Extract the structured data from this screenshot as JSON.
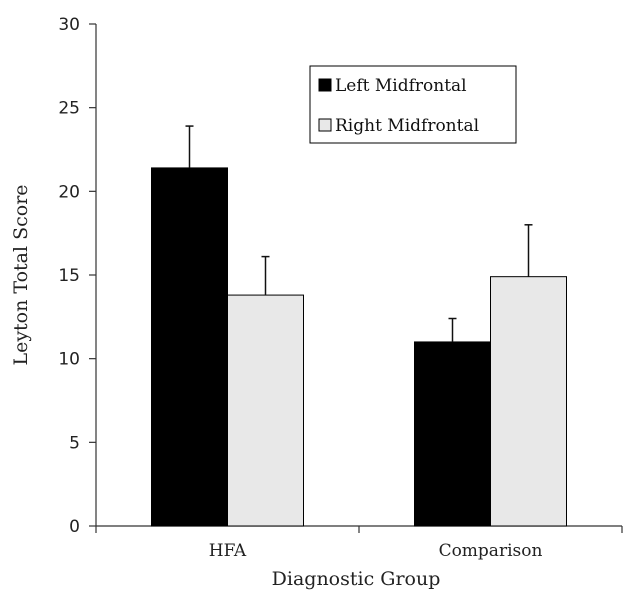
{
  "chart_data": {
    "type": "bar",
    "title": "",
    "xlabel": "Diagnostic Group",
    "ylabel": "Leyton Total Score",
    "categories": [
      "HFA",
      "Comparison"
    ],
    "series": [
      {
        "name": "Left Midfrontal",
        "values": [
          21.4,
          11.0
        ],
        "errors": [
          2.5,
          1.4
        ],
        "color": "#000000"
      },
      {
        "name": "Right Midfrontal",
        "values": [
          13.8,
          14.9
        ],
        "errors": [
          2.3,
          3.1
        ],
        "color": "#e8e8e8"
      }
    ],
    "ylim": [
      0,
      30
    ],
    "yticks": [
      0,
      5,
      10,
      15,
      20,
      25,
      30
    ],
    "grid": false,
    "legend_position": "top-right"
  }
}
